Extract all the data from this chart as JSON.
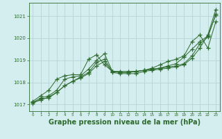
{
  "background_color": "#d4edee",
  "grid_color": "#b0d0d0",
  "line_color": "#2d6a2d",
  "marker_color": "#2d6a2d",
  "xlabel": "Graphe pression niveau de la mer (hPa)",
  "xlabel_fontsize": 7,
  "xlim": [
    -0.5,
    23.5
  ],
  "ylim": [
    1016.7,
    1021.6
  ],
  "yticks": [
    1017,
    1018,
    1019,
    1020,
    1021
  ],
  "xticks": [
    0,
    1,
    2,
    3,
    4,
    5,
    6,
    7,
    8,
    9,
    10,
    11,
    12,
    13,
    14,
    15,
    16,
    17,
    18,
    19,
    20,
    21,
    22,
    23
  ],
  "series": [
    [
      1017.1,
      1017.2,
      1017.35,
      1017.55,
      1017.85,
      1018.05,
      1018.2,
      1018.4,
      1018.75,
      1018.95,
      1018.45,
      1018.4,
      1018.4,
      1018.4,
      1018.5,
      1018.55,
      1018.6,
      1018.65,
      1018.7,
      1018.8,
      1019.1,
      1019.55,
      1020.15,
      1021.3
    ],
    [
      1017.05,
      1017.25,
      1017.3,
      1017.55,
      1017.85,
      1018.05,
      1018.25,
      1018.45,
      1018.9,
      1019.05,
      1018.5,
      1018.45,
      1018.45,
      1018.5,
      1018.55,
      1018.6,
      1018.65,
      1018.7,
      1018.75,
      1018.85,
      1019.2,
      1019.75,
      1020.05,
      1021.1
    ],
    [
      1017.1,
      1017.3,
      1017.4,
      1017.65,
      1018.15,
      1018.25,
      1018.3,
      1018.6,
      1019.0,
      1019.3,
      1018.5,
      1018.5,
      1018.5,
      1018.5,
      1018.55,
      1018.6,
      1018.65,
      1018.75,
      1018.85,
      1019.15,
      1019.5,
      1019.85,
      1020.1,
      1021.05
    ],
    [
      1017.15,
      1017.4,
      1017.65,
      1018.15,
      1018.3,
      1018.35,
      1018.35,
      1019.05,
      1019.25,
      1018.8,
      1018.5,
      1018.45,
      1018.45,
      1018.5,
      1018.55,
      1018.65,
      1018.8,
      1018.95,
      1019.05,
      1019.2,
      1019.85,
      1020.15,
      1019.55,
      1020.75
    ]
  ]
}
